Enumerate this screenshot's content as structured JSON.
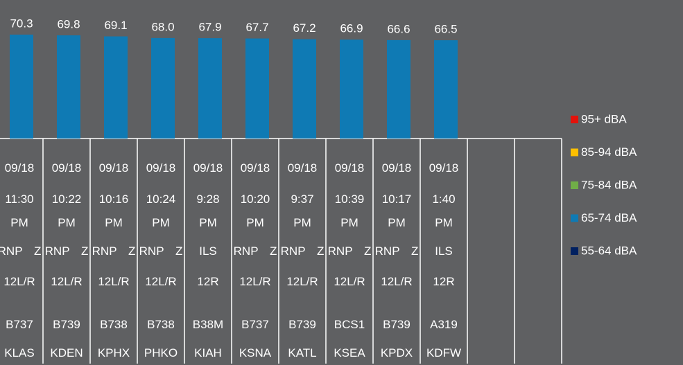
{
  "chart_data": {
    "type": "bar",
    "ylim": [
      0,
      100
    ],
    "series": [
      {
        "name": "95+ dBA",
        "color": "#e3120b",
        "values": [
          null,
          null,
          null,
          null,
          null,
          null,
          null,
          null,
          null,
          null
        ]
      },
      {
        "name": "85-94 dBA",
        "color": "#ffc000",
        "values": [
          null,
          null,
          null,
          null,
          null,
          null,
          null,
          null,
          null,
          null
        ]
      },
      {
        "name": "75-84 dBA",
        "color": "#70ad47",
        "values": [
          null,
          null,
          null,
          null,
          null,
          null,
          null,
          null,
          null,
          null
        ]
      },
      {
        "name": "65-74 dBA",
        "color": "#0f7ab4",
        "values": [
          70.3,
          69.8,
          69.1,
          68.0,
          67.9,
          67.7,
          67.2,
          66.9,
          66.6,
          66.5
        ],
        "value_labels": [
          "70.3",
          "69.8",
          "69.1",
          "68.0",
          "67.9",
          "67.7",
          "67.2",
          "66.9",
          "66.6",
          "66.5"
        ]
      },
      {
        "name": "55-64 dBA",
        "color": "#002060",
        "values": [
          null,
          null,
          null,
          null,
          null,
          null,
          null,
          null,
          null,
          null
        ]
      }
    ],
    "table": {
      "date": [
        "09/18",
        "09/18",
        "09/18",
        "09/18",
        "09/18",
        "09/18",
        "09/18",
        "09/18",
        "09/18",
        "09/18"
      ],
      "time": [
        "11:30 PM",
        "10:22 PM",
        "10:16 PM",
        "10:24 PM",
        "9:28 PM",
        "10:20 PM",
        "9:37 PM",
        "10:39 PM",
        "10:17 PM",
        "1:40 PM"
      ],
      "procedure": [
        "RNP Z 12L/R",
        "RNP Z 12L/R",
        "RNP Z 12L/R",
        "RNP Z 12L/R",
        "ILS 12R",
        "RNP Z 12L/R",
        "RNP Z 12L/R",
        "RNP Z 12L/R",
        "RNP Z 12L/R",
        "ILS 12R"
      ],
      "aircraft": [
        "B737",
        "B739",
        "B738",
        "B738",
        "B38M",
        "B737",
        "B739",
        "BCS1",
        "B739",
        "A319"
      ],
      "airport": [
        "KLAS",
        "KDEN",
        "KPHX",
        "PHKO",
        "KIAH",
        "KSNA",
        "KATL",
        "KSEA",
        "KPDX",
        "KDFW"
      ]
    }
  }
}
